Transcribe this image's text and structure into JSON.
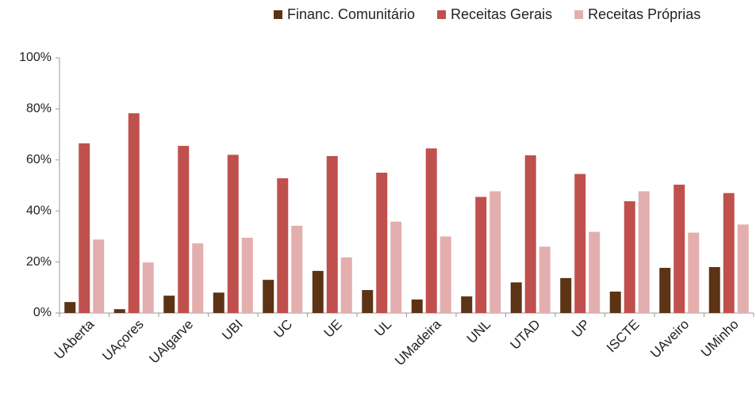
{
  "chart_data": {
    "type": "bar",
    "categories": [
      "UAberta",
      "UAçores",
      "UAlgarve",
      "UBI",
      "UC",
      "UE",
      "UL",
      "UMadeira",
      "UNL",
      "UTAD",
      "UP",
      "ISCTE",
      "UAveiro",
      "UMinho"
    ],
    "series": [
      {
        "name": "Financ. Comunitário",
        "color": "#5c3314",
        "values": [
          4.3,
          1.5,
          6.8,
          8,
          13,
          16.5,
          9,
          5.3,
          6.5,
          12,
          13.7,
          8.4,
          17.7,
          18
        ]
      },
      {
        "name": "Receitas Gerais",
        "color": "#c0504d",
        "values": [
          66.5,
          78.3,
          65.5,
          62,
          52.8,
          61.5,
          55,
          64.5,
          45.5,
          61.8,
          54.5,
          43.8,
          50.3,
          47
        ]
      },
      {
        "name": "Receitas Próprias",
        "color": "#e3aeae",
        "values": [
          28.8,
          19.8,
          27.3,
          29.5,
          34.2,
          21.8,
          35.8,
          30,
          47.7,
          26,
          31.8,
          47.7,
          31.5,
          34.7
        ]
      }
    ],
    "ylim": [
      0,
      100
    ],
    "yticks": [
      {
        "value": 0,
        "label": "0%"
      },
      {
        "value": 20,
        "label": "20%"
      },
      {
        "value": 40,
        "label": "40%"
      },
      {
        "value": 60,
        "label": "60%"
      },
      {
        "value": 80,
        "label": "80%"
      },
      {
        "value": 100,
        "label": "100%"
      }
    ],
    "grid": false,
    "legend": "top"
  }
}
